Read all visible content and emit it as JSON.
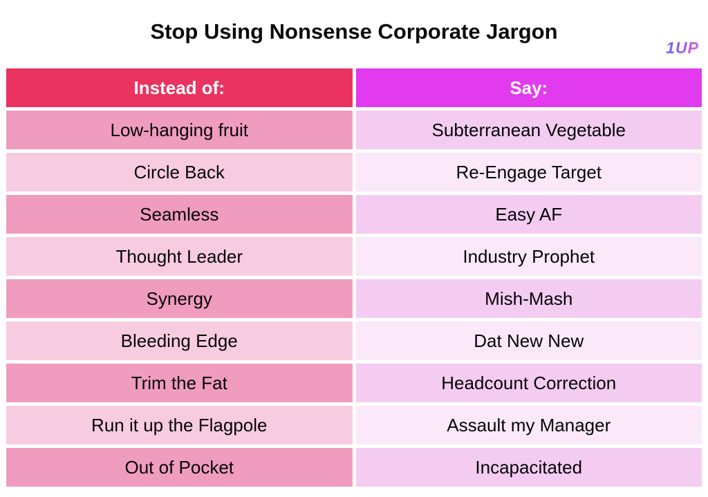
{
  "page": {
    "title": "Stop Using Nonsense Corporate Jargon",
    "logo_text": "1UP"
  },
  "table": {
    "columns": [
      {
        "label": "Instead of:"
      },
      {
        "label": "Say:"
      }
    ],
    "rows": [
      {
        "instead_of": "Low-hanging fruit",
        "say": "Subterranean Vegetable"
      },
      {
        "instead_of": "Circle Back",
        "say": "Re-Engage Target"
      },
      {
        "instead_of": "Seamless",
        "say": "Easy AF"
      },
      {
        "instead_of": "Thought Leader",
        "say": "Industry Prophet"
      },
      {
        "instead_of": "Synergy",
        "say": "Mish-Mash"
      },
      {
        "instead_of": "Bleeding Edge",
        "say": "Dat New New"
      },
      {
        "instead_of": "Trim the Fat",
        "say": "Headcount Correction"
      },
      {
        "instead_of": "Run it up the Flagpole",
        "say": "Assault my Manager"
      },
      {
        "instead_of": "Out of Pocket",
        "say": "Incapacitated"
      }
    ]
  },
  "colors": {
    "header-left-bg": "#EA3360",
    "header-right-bg": "#E23AEF",
    "row-odd-left-bg": "#F09CBE",
    "row-odd-right-bg": "#F4CCF2",
    "row-even-left-bg": "#F8CCE0",
    "row-even-right-bg": "#FBE9FA",
    "logo-blue": "#4D6FE8",
    "logo-purple": "#A855E0",
    "logo-pink": "#F06ACF"
  }
}
